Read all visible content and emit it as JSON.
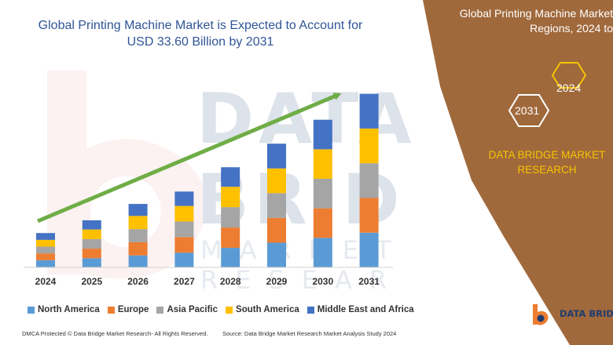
{
  "left_title_line1": "Global Printing Machine Market is Expected to Account for",
  "left_title_line2": "USD 33.60 Billion by 2031",
  "right_title_line1": "Global Printing Machine Market",
  "right_title_line2": "Regions, 2024 to",
  "hex_labels": [
    "2024",
    "2031"
  ],
  "right_brand_line1": "DATA BRIDGE MARKET",
  "right_brand_line2": "RESEARCH",
  "brand_name": "DATA BRIDGE",
  "footer_left": "DMCA Protected © Data Bridge Market Research- All Rights Reserved.",
  "footer_right": "Source: Data Bridge Market Research  Market Analysis Study 2024",
  "colors": {
    "panel": "#a0693c",
    "title": "#2f5597",
    "brand_yellow": "#f5c400",
    "arrow": "#6fad47"
  },
  "chart_data": {
    "type": "bar",
    "stacked": true,
    "categories": [
      "2024",
      "2025",
      "2026",
      "2027",
      "2028",
      "2029",
      "2030",
      "2031"
    ],
    "series": [
      {
        "name": "North America",
        "color": "#5b9bd5",
        "values": [
          1.8,
          2.3,
          3.0,
          3.7,
          4.9,
          6.2,
          7.4,
          8.7
        ]
      },
      {
        "name": "Europe",
        "color": "#ed7d31",
        "values": [
          1.7,
          2.4,
          3.3,
          3.9,
          5.1,
          6.2,
          7.4,
          8.7
        ]
      },
      {
        "name": "Asia Pacific",
        "color": "#a5a5a5",
        "values": [
          1.7,
          2.4,
          3.3,
          3.9,
          5.1,
          6.2,
          7.4,
          8.7
        ]
      },
      {
        "name": "South America",
        "color": "#ffc000",
        "values": [
          1.7,
          2.4,
          3.3,
          3.9,
          5.1,
          6.2,
          7.4,
          8.7
        ]
      },
      {
        "name": "Middle East and Africa",
        "color": "#4472c4",
        "values": [
          1.7,
          2.3,
          3.0,
          3.6,
          4.9,
          6.2,
          7.4,
          8.7
        ]
      }
    ],
    "title": "",
    "xlabel": "",
    "ylabel": "",
    "ylim": [
      0,
      45
    ],
    "grid": false,
    "y_axis_shown": false,
    "legend_position": "bottom",
    "trend_arrow": true
  }
}
